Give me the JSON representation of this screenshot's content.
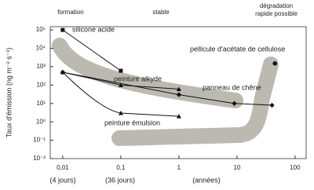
{
  "chart_data": {
    "type": "line",
    "log_x": true,
    "log_y": true,
    "ylabel": "Taux d'émission (ng m⁻² s⁻¹)",
    "xlim": [
      0.0061,
      155
    ],
    "ylim": [
      0.01,
      150000
    ],
    "xticks": [
      {
        "value": 0.01,
        "label": "0,01"
      },
      {
        "value": 0.1,
        "label": "0,1"
      },
      1,
      10,
      100
    ],
    "yticks": [
      {
        "value": 100000,
        "label": "10⁵"
      },
      {
        "value": 10000,
        "label": "10⁴"
      },
      {
        "value": 1000,
        "label": "10³"
      },
      {
        "value": 100,
        "label": "10²"
      },
      {
        "value": 10,
        "label": "10¹"
      },
      {
        "value": 1,
        "label": "10⁰"
      },
      {
        "value": 0.1,
        "label": "10⁻¹"
      },
      {
        "value": 0.01,
        "label": "10⁻²"
      }
    ],
    "x_sublabels": [
      "(4 jours)",
      "(36 jours)",
      "(années)"
    ],
    "phases": [
      "formation",
      "stable",
      "dégradation",
      "rapide possible"
    ],
    "series": [
      {
        "name": "silicone acide",
        "color": "#111111",
        "marker": "square",
        "x": [
          0.01,
          0.1
        ],
        "values": [
          100000,
          600
        ]
      },
      {
        "name": "peinture alkyde",
        "color": "#111111",
        "marker": "triangle",
        "x": [
          0.01,
          0.1,
          1
        ],
        "values": [
          500,
          100,
          60
        ]
      },
      {
        "name": "panneau de chêne",
        "color": "#111111",
        "marker": "diamond",
        "x": [
          0.01,
          1,
          9,
          40
        ],
        "values": [
          500,
          30,
          10,
          8
        ]
      },
      {
        "name": "peinture émulsion",
        "color": "#111111",
        "marker": "triangle",
        "x": [
          0.01,
          0.1,
          1
        ],
        "values": [
          500,
          3,
          2
        ]
      },
      {
        "name": "pellicule d'acétate de cellulose",
        "color": "#111111",
        "marker": "circle",
        "x": [
          45
        ],
        "values": [
          1500
        ]
      }
    ]
  }
}
